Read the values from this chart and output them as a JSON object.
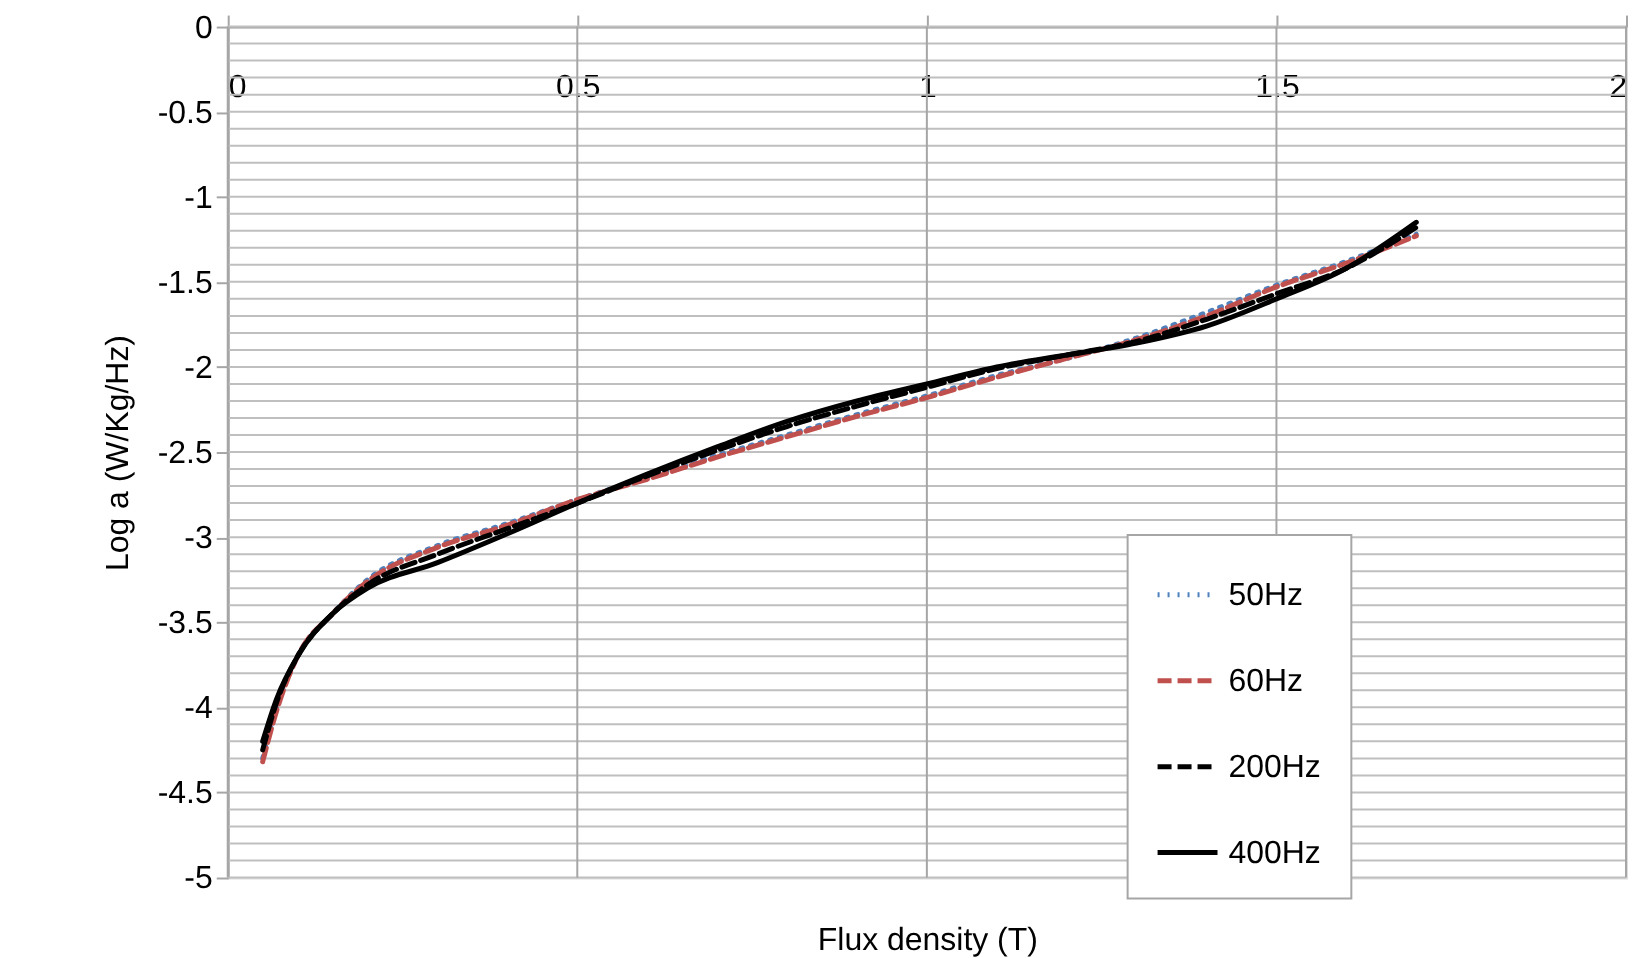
{
  "chart_data": {
    "type": "line",
    "xlabel": "Flux density  (T)",
    "ylabel": "Log a  (W/Kg/Hz)",
    "xlim": [
      0,
      2
    ],
    "xticks": [
      0,
      0.5,
      1,
      1.5,
      2
    ],
    "ylim": [
      -5,
      0
    ],
    "yticks": [
      0,
      {
        "value": -0.1,
        "label": null
      },
      {
        "value": -0.2,
        "label": null
      },
      {
        "value": -0.3,
        "label": null
      },
      {
        "value": -0.4,
        "label": null
      },
      -0.5,
      {
        "value": -0.6,
        "label": null
      },
      {
        "value": -0.7,
        "label": null
      },
      {
        "value": -0.8,
        "label": null
      },
      {
        "value": -0.9,
        "label": null
      },
      -1,
      {
        "value": -1.1,
        "label": null
      },
      {
        "value": -1.2,
        "label": null
      },
      {
        "value": -1.3,
        "label": null
      },
      {
        "value": -1.4,
        "label": null
      },
      -1.5,
      {
        "value": -1.6,
        "label": null
      },
      {
        "value": -1.7,
        "label": null
      },
      {
        "value": -1.8,
        "label": null
      },
      {
        "value": -1.9,
        "label": null
      },
      -2,
      {
        "value": -2.1,
        "label": null
      },
      {
        "value": -2.2,
        "label": null
      },
      {
        "value": -2.3,
        "label": null
      },
      {
        "value": -2.4,
        "label": null
      },
      -2.5,
      {
        "value": -2.6,
        "label": null
      },
      {
        "value": -2.7,
        "label": null
      },
      {
        "value": -2.8,
        "label": null
      },
      {
        "value": -2.9,
        "label": null
      },
      -3,
      {
        "value": -3.1,
        "label": null
      },
      {
        "value": -3.2,
        "label": null
      },
      {
        "value": -3.3,
        "label": null
      },
      {
        "value": -3.4,
        "label": null
      },
      -3.5,
      {
        "value": -3.6,
        "label": null
      },
      {
        "value": -3.7,
        "label": null
      },
      {
        "value": -3.8,
        "label": null
      },
      {
        "value": -3.9,
        "label": null
      },
      -4,
      {
        "value": -4.1,
        "label": null
      },
      {
        "value": -4.2,
        "label": null
      },
      {
        "value": -4.3,
        "label": null
      },
      {
        "value": -4.4,
        "label": null
      },
      -4.5,
      {
        "value": -4.6,
        "label": null
      },
      {
        "value": -4.7,
        "label": null
      },
      {
        "value": -4.8,
        "label": null
      },
      {
        "value": -4.9,
        "label": null
      },
      -5
    ],
    "grid": true,
    "legend": "bottom right",
    "marker": "none",
    "x": [
      0.05,
      0.07,
      0.1,
      0.15,
      0.2,
      0.3,
      0.4,
      0.5,
      0.6,
      0.7,
      0.8,
      0.9,
      1.0,
      1.1,
      1.2,
      1.3,
      1.4,
      1.5,
      1.6,
      1.7
    ],
    "series": [
      {
        "name": "50Hz",
        "color": "#4f81bd",
        "line_style": "dotted",
        "values": [
          -4.3,
          -4.0,
          -3.7,
          -3.45,
          -3.25,
          -3.05,
          -2.92,
          -2.78,
          -2.65,
          -2.52,
          -2.4,
          -2.28,
          -2.17,
          -2.05,
          -1.95,
          -1.83,
          -1.68,
          -1.52,
          -1.38,
          -1.22
        ]
      },
      {
        "name": "60Hz",
        "color": "#c0504d",
        "line_style": "dashed",
        "values": [
          -4.32,
          -4.02,
          -3.7,
          -3.45,
          -3.26,
          -3.06,
          -2.93,
          -2.78,
          -2.66,
          -2.53,
          -2.41,
          -2.29,
          -2.18,
          -2.06,
          -1.95,
          -1.84,
          -1.7,
          -1.53,
          -1.39,
          -1.23
        ]
      },
      {
        "name": "200Hz",
        "color": "#000000",
        "line_style": "dashed",
        "values": [
          -4.25,
          -3.97,
          -3.7,
          -3.45,
          -3.28,
          -3.1,
          -2.95,
          -2.8,
          -2.64,
          -2.49,
          -2.35,
          -2.23,
          -2.12,
          -2.01,
          -1.93,
          -1.85,
          -1.72,
          -1.57,
          -1.42,
          -1.18
        ]
      },
      {
        "name": "400Hz",
        "color": "#000000",
        "line_style": "solid",
        "values": [
          -4.2,
          -3.95,
          -3.7,
          -3.45,
          -3.3,
          -3.15,
          -2.98,
          -2.8,
          -2.63,
          -2.47,
          -2.32,
          -2.2,
          -2.1,
          -2.0,
          -1.93,
          -1.86,
          -1.76,
          -1.6,
          -1.42,
          -1.15
        ]
      }
    ]
  }
}
